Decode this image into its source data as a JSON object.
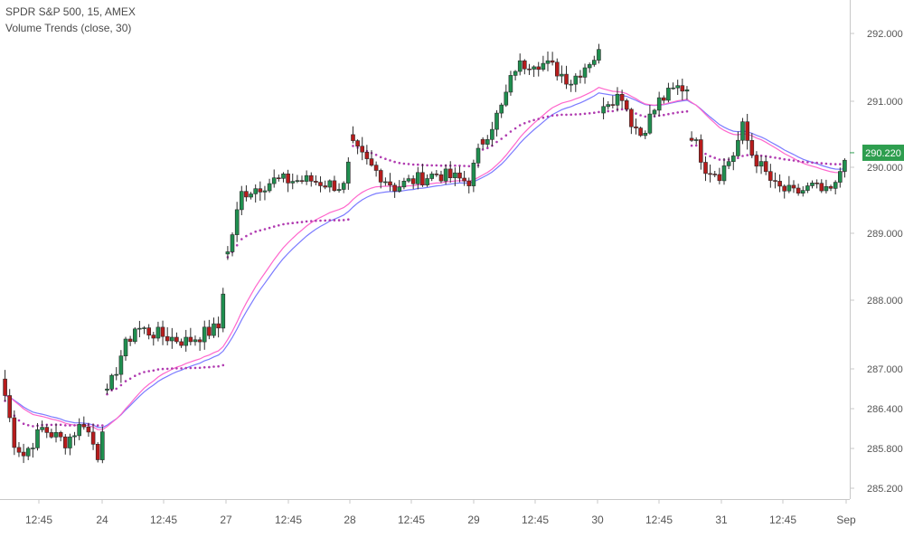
{
  "legend": {
    "symbol_line": "SPDR S&P 500, 15, AMEX",
    "indicator_line": "Volume Trends (close, 30)"
  },
  "chart_data": {
    "type": "candlestick",
    "y_axis_position": "right",
    "y_ticks": [
      "292.000",
      "291.000",
      "290.000",
      "289.000",
      "288.000",
      "287.000",
      "286.400",
      "285.800",
      "285.200"
    ],
    "y_tick_values": [
      292.0,
      291.0,
      290.0,
      289.0,
      288.0,
      287.0,
      286.4,
      285.8,
      285.2
    ],
    "last_price_label": "290.220",
    "last_price": 290.22,
    "x_ticks": [
      "12:45",
      "24",
      "12:45",
      "27",
      "12:45",
      "28",
      "12:45",
      "29",
      "12:45",
      "30",
      "12:45",
      "31",
      "12:45",
      "Sep"
    ],
    "colors": {
      "up": "#26a69a",
      "up_body": "#1f8f4f",
      "down": "#b71c1c",
      "wick": "#2b2b2b",
      "ma_blue": "#7b7bff",
      "ma_magenta": "#ff66cc",
      "dots": "#b03ab0",
      "last_price_bg": "#2e9e4f",
      "axis_text": "#555555"
    },
    "series": [
      {
        "name": "close",
        "style": "candles"
      },
      {
        "style": "line",
        "color": "blue"
      },
      {
        "style": "line",
        "color": "magenta"
      },
      {
        "style": "dots",
        "color": "purple"
      }
    ]
  }
}
